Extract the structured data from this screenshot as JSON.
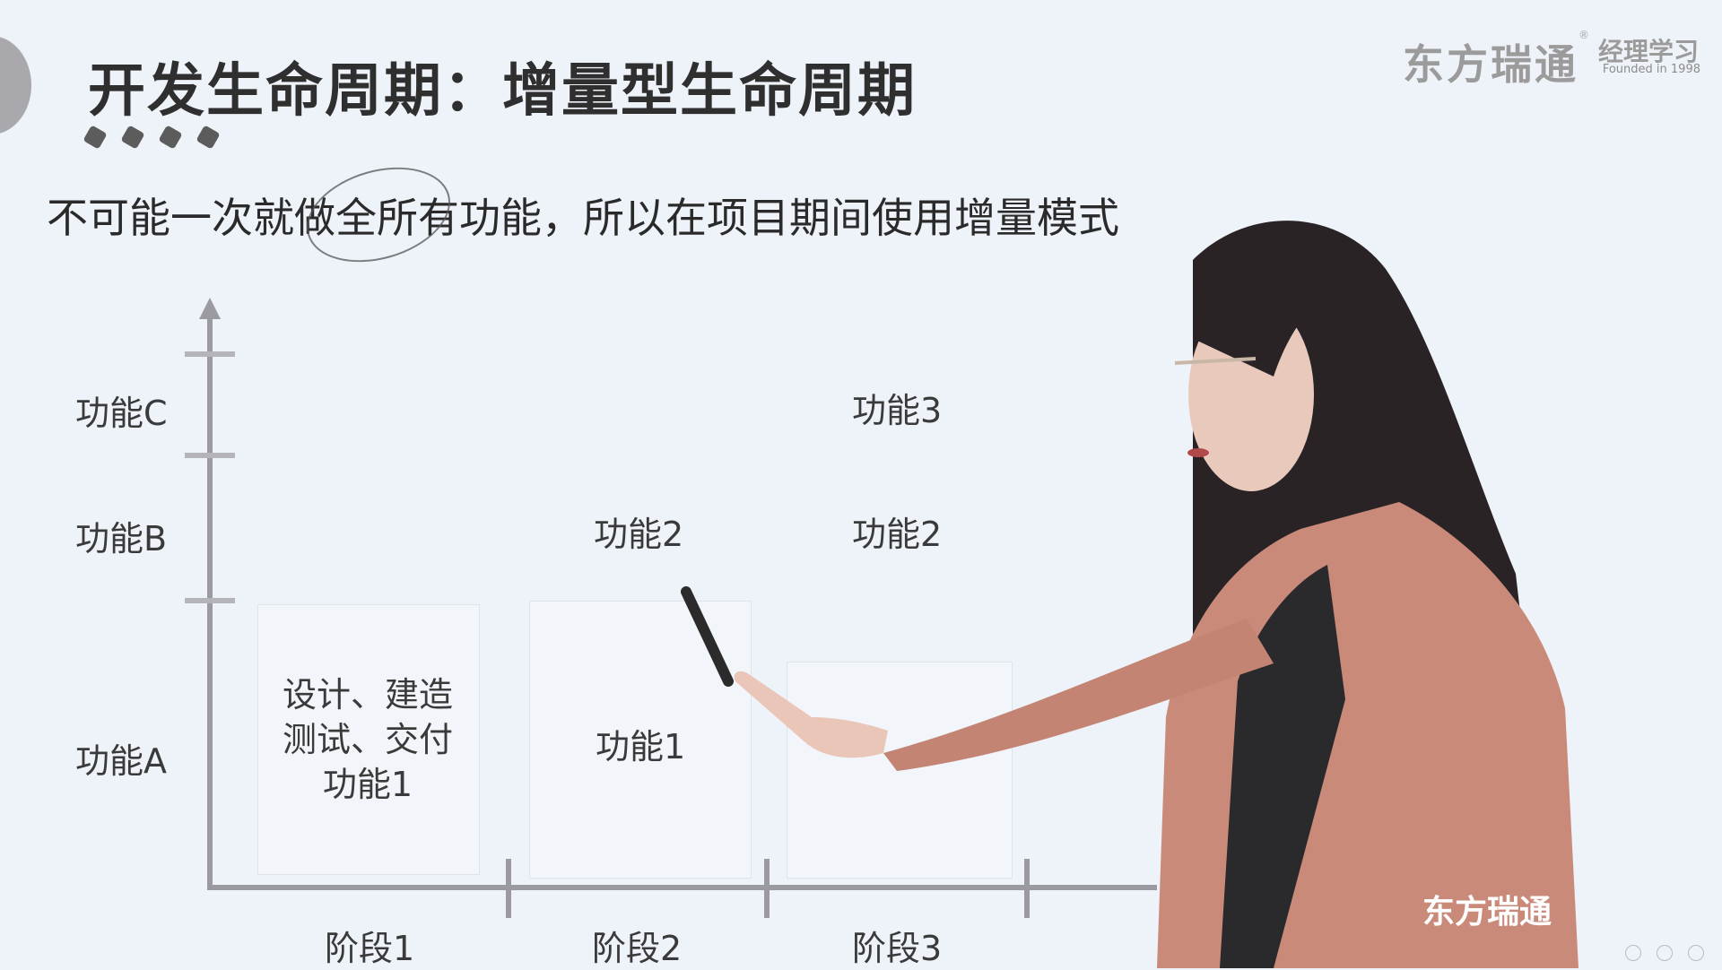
{
  "header": {
    "title": "开发生命周期：增量型生命周期",
    "subtitle": "不可能一次就做全所有功能，所以在项目期间使用增量模式"
  },
  "brand": {
    "name": "东方瑞通",
    "registered": "®",
    "secondary": "经理学习",
    "founded": "Founded in 1998",
    "watermark": "东方瑞通"
  },
  "diagram": {
    "y_labels": [
      "功能C",
      "功能B",
      "功能A"
    ],
    "x_labels": [
      "阶段1",
      "阶段2",
      "阶段3"
    ],
    "stage1_box": [
      "设计、建造",
      "测试、交付",
      "功能1"
    ],
    "stage2_items": [
      "功能2",
      "功能1"
    ],
    "stage3_items": [
      "功能3",
      "功能2"
    ]
  },
  "colors": {
    "background": "#eef2f9",
    "axis": "#9a9aa0",
    "jacket": "#c98a7a"
  }
}
